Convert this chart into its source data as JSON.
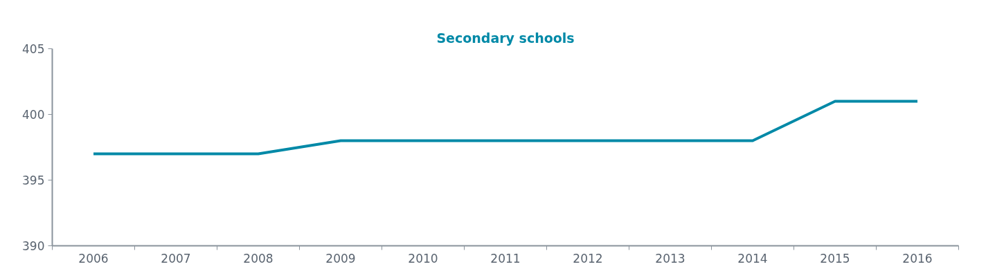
{
  "chart_data": {
    "type": "line",
    "title": "Secondary schools",
    "categories": [
      "2006",
      "2007",
      "2008",
      "2009",
      "2010",
      "2011",
      "2012",
      "2013",
      "2014",
      "2015",
      "2016"
    ],
    "series": [
      {
        "color": "#0089a7",
        "values": [
          397,
          397,
          397,
          398,
          398,
          398,
          398,
          398,
          398,
          401,
          401
        ]
      }
    ],
    "ylim": [
      390,
      405
    ],
    "yticks": [
      390,
      395,
      400,
      405
    ],
    "grid": false,
    "marker": "none",
    "line_style": "solid"
  }
}
